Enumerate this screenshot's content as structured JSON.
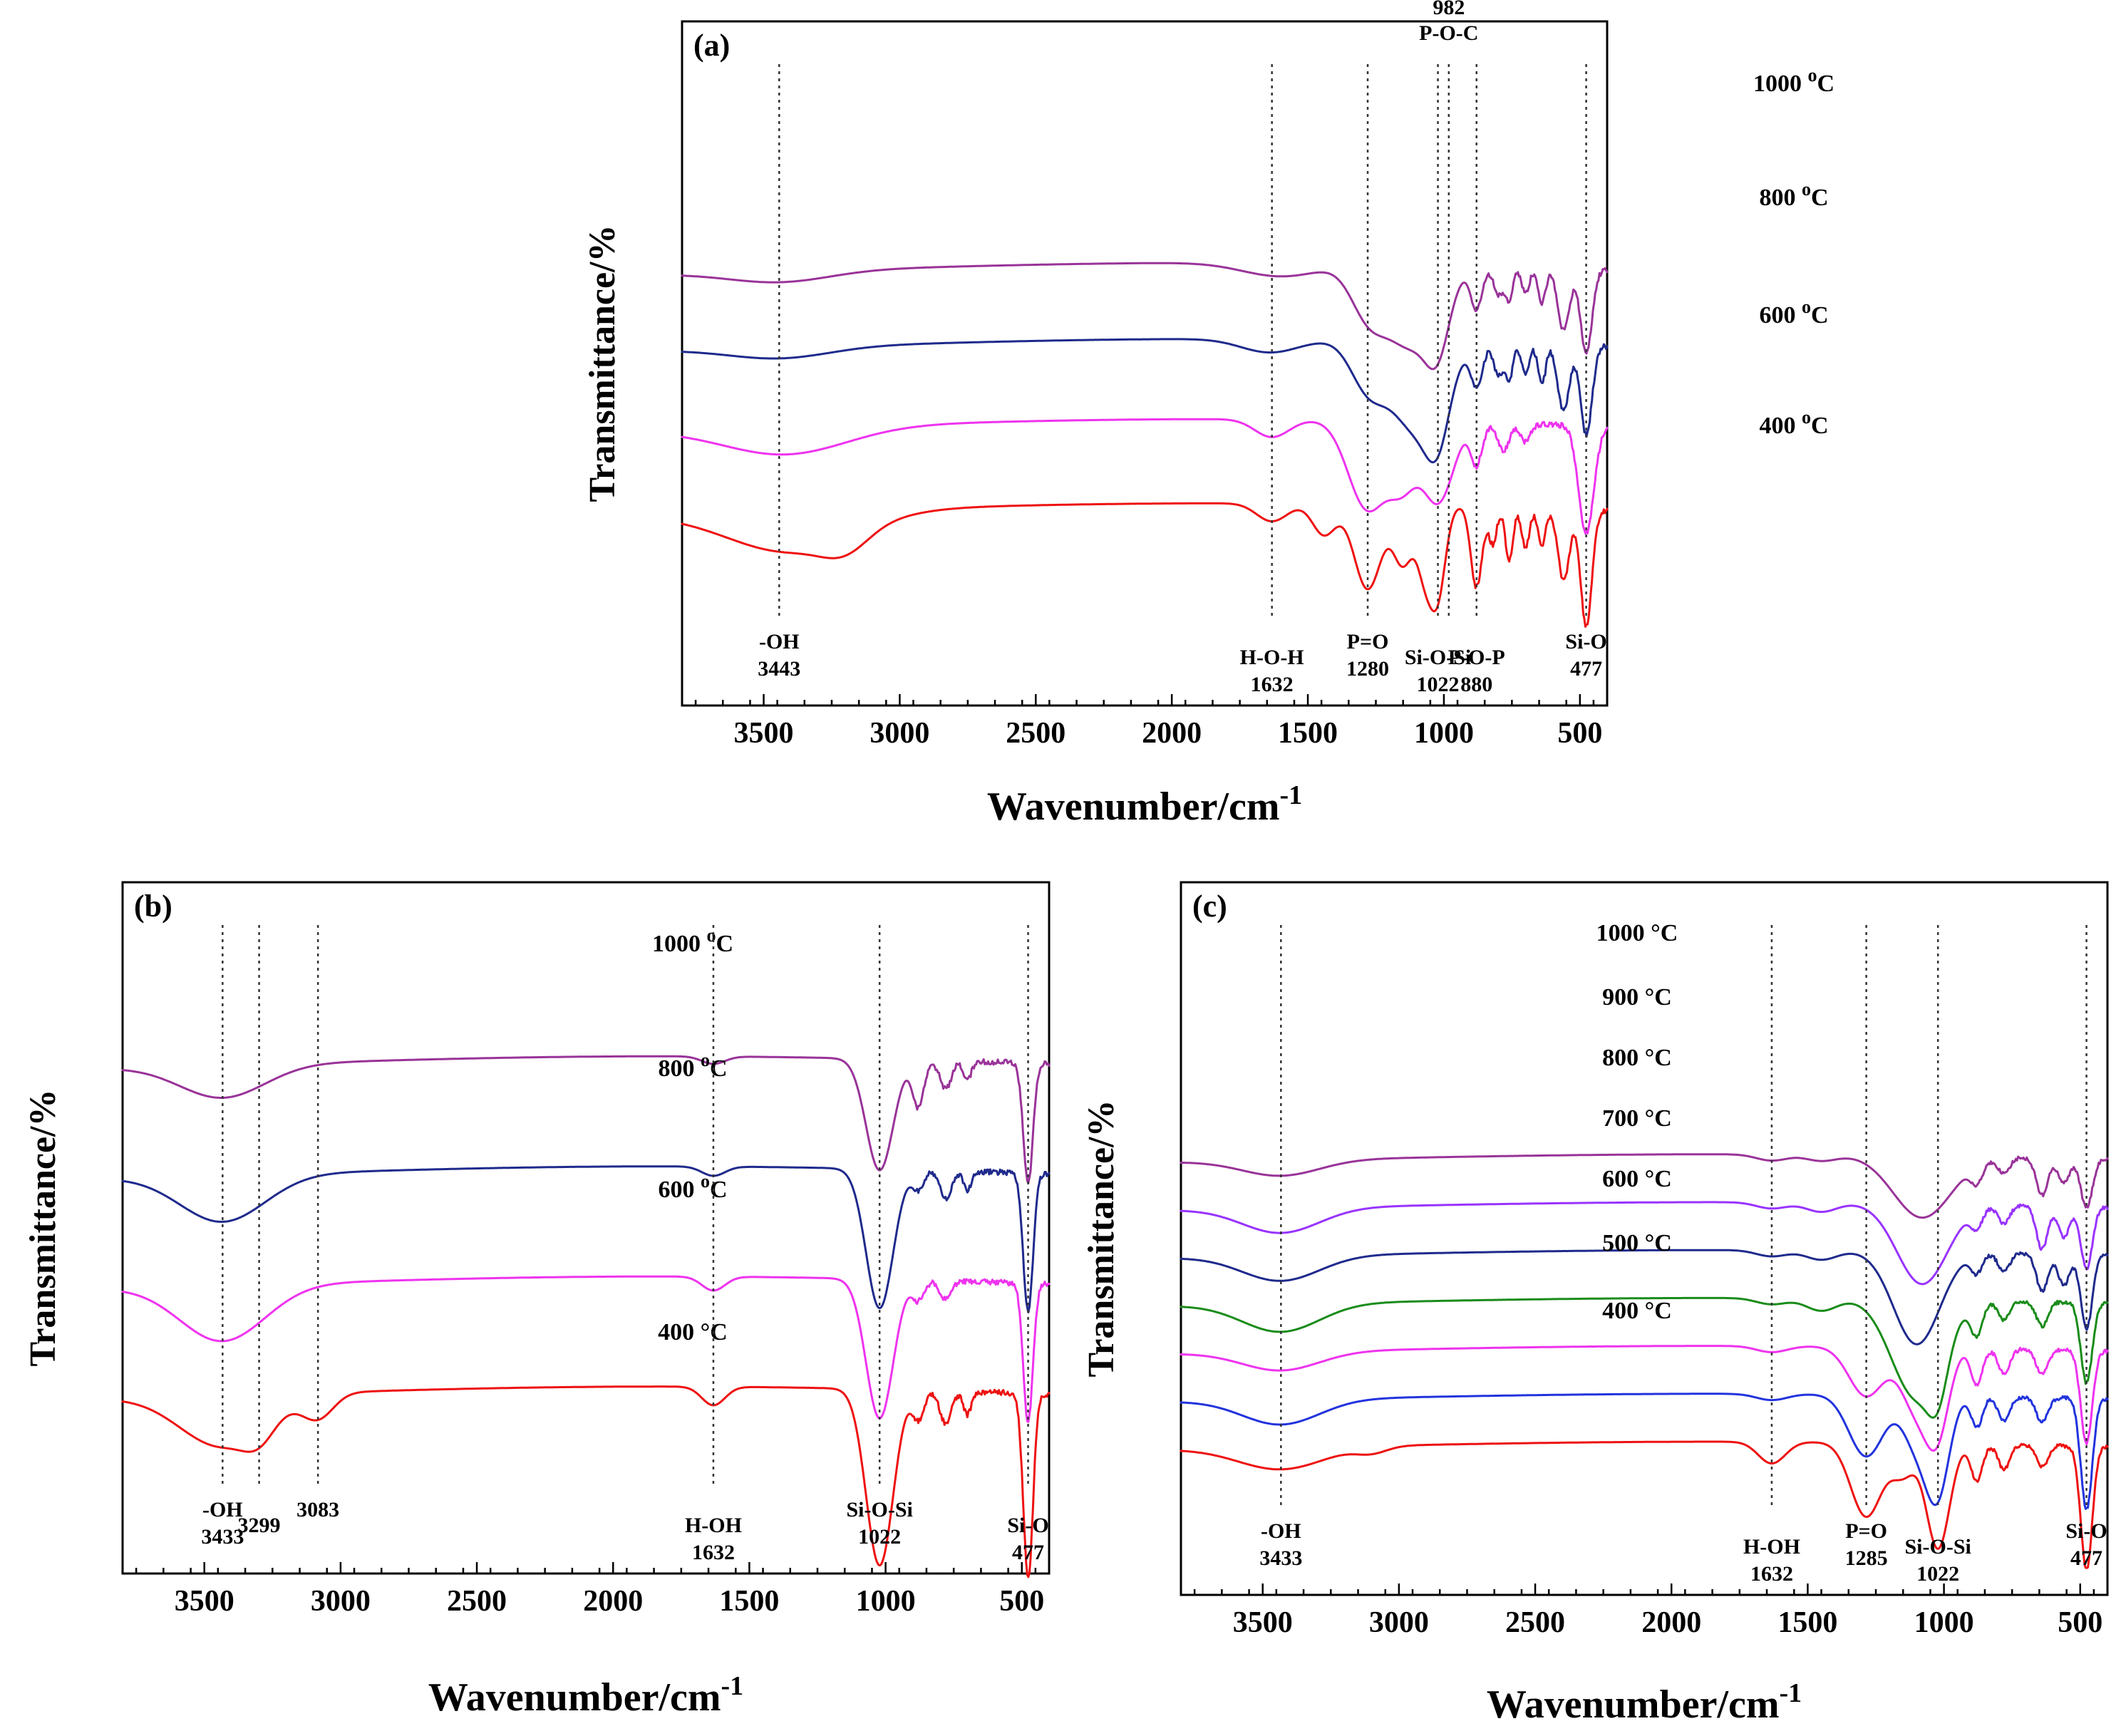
{
  "figure": {
    "ylabel": "Transmittance/%",
    "xlabel_main": "Wavenumber/cm",
    "xlabel_sup": "-1"
  },
  "chart_data": [
    {
      "id": "a",
      "type": "line",
      "panel_label": "(a)",
      "xlim": [
        3800,
        400
      ],
      "xticks": [
        3500,
        3000,
        2500,
        2000,
        1500,
        1000,
        500
      ],
      "series": [
        {
          "name": "1000 °C",
          "label_main": "1000 ",
          "label_deg": "o",
          "label_unit": "C",
          "color": "#993399",
          "offset": 3.0,
          "dips": [
            [
              3440,
              0.12,
              260
            ],
            [
              1600,
              0.15,
              200
            ],
            [
              1280,
              0.5,
              90
            ],
            [
              1120,
              0.9,
              130
            ],
            [
              1022,
              0.6,
              60
            ],
            [
              880,
              0.45,
              30
            ],
            [
              800,
              0.3,
              25
            ],
            [
              760,
              0.35,
              20
            ],
            [
              700,
              0.3,
              20
            ],
            [
              640,
              0.4,
              20
            ],
            [
              560,
              0.7,
              30
            ],
            [
              477,
              0.95,
              30
            ]
          ]
        },
        {
          "name": "800 °C",
          "label_main": "800 ",
          "label_deg": "o",
          "label_unit": "C",
          "color": "#1f2a8c",
          "offset": 2.05,
          "dips": [
            [
              3440,
              0.12,
              260
            ],
            [
              1640,
              0.15,
              150
            ],
            [
              1280,
              0.5,
              90
            ],
            [
              1100,
              1.0,
              130
            ],
            [
              1022,
              0.6,
              60
            ],
            [
              880,
              0.45,
              30
            ],
            [
              800,
              0.35,
              25
            ],
            [
              760,
              0.4,
              20
            ],
            [
              700,
              0.35,
              20
            ],
            [
              640,
              0.45,
              20
            ],
            [
              560,
              0.75,
              30
            ],
            [
              477,
              1.0,
              30
            ]
          ]
        },
        {
          "name": "600 °C",
          "label_main": "600 ",
          "label_deg": "o",
          "label_unit": "C",
          "color": "#ee33ee",
          "offset": 1.05,
          "dips": [
            [
              3420,
              0.3,
              320
            ],
            [
              1632,
              0.2,
              90
            ],
            [
              1280,
              1.0,
              100
            ],
            [
              1150,
              0.6,
              70
            ],
            [
              1022,
              0.9,
              80
            ],
            [
              880,
              0.45,
              30
            ],
            [
              780,
              0.3,
              30
            ],
            [
              700,
              0.2,
              25
            ],
            [
              477,
              1.2,
              40
            ]
          ]
        },
        {
          "name": "400 °C",
          "label_main": "400 ",
          "label_deg": "o",
          "label_unit": "C",
          "color": "#ee1111",
          "offset": 0.0,
          "dips": [
            [
              3400,
              0.45,
              330
            ],
            [
              3200,
              0.2,
              120
            ],
            [
              1632,
              0.2,
              80
            ],
            [
              1440,
              0.35,
              60
            ],
            [
              1280,
              0.95,
              70
            ],
            [
              1150,
              0.65,
              50
            ],
            [
              1070,
              0.7,
              40
            ],
            [
              1022,
              0.95,
              40
            ],
            [
              880,
              0.9,
              30
            ],
            [
              820,
              0.4,
              20
            ],
            [
              760,
              0.6,
              20
            ],
            [
              700,
              0.45,
              20
            ],
            [
              640,
              0.4,
              20
            ],
            [
              560,
              0.8,
              30
            ],
            [
              477,
              1.3,
              30
            ]
          ]
        }
      ],
      "lines": [
        {
          "x": 3443,
          "lines": [
            "-OH",
            "3443"
          ]
        },
        {
          "x": 1632,
          "lines": [
            "H-O-H",
            "1632"
          ]
        },
        {
          "x": 1280,
          "lines": [
            "P=O",
            "1280"
          ]
        },
        {
          "x": 1022,
          "lines": [
            "Si-O-Si",
            "1022"
          ]
        },
        {
          "x": 982,
          "lines": [
            "982",
            "P-O-C"
          ],
          "top": true
        },
        {
          "x": 880,
          "lines": [
            "P-O-P",
            "880"
          ]
        },
        {
          "x": 477,
          "lines": [
            "Si-O",
            "477"
          ]
        }
      ]
    },
    {
      "id": "b",
      "type": "line",
      "panel_label": "(b)",
      "xlim": [
        3800,
        400
      ],
      "xticks": [
        3500,
        3000,
        2500,
        2000,
        1500,
        1000,
        500
      ],
      "series": [
        {
          "name": "1000 °C",
          "label_main": "1000 ",
          "label_deg": "o",
          "label_unit": "C",
          "color": "#993399",
          "offset": 3.0,
          "dips": [
            [
              3433,
              0.35,
              220
            ],
            [
              1632,
              0.08,
              60
            ],
            [
              1022,
              1.2,
              70
            ],
            [
              880,
              0.5,
              30
            ],
            [
              780,
              0.3,
              30
            ],
            [
              700,
              0.2,
              20
            ],
            [
              477,
              1.3,
              25
            ]
          ]
        },
        {
          "name": "800 °C",
          "label_main": "800 ",
          "label_deg": "o",
          "label_unit": "C",
          "color": "#1f2a8c",
          "offset": 2.0,
          "dips": [
            [
              3433,
              0.5,
              220
            ],
            [
              1632,
              0.1,
              60
            ],
            [
              1022,
              1.5,
              70
            ],
            [
              880,
              0.2,
              30
            ],
            [
              780,
              0.3,
              30
            ],
            [
              700,
              0.2,
              20
            ],
            [
              477,
              1.5,
              25
            ]
          ]
        },
        {
          "name": "600 °C",
          "label_main": "600 ",
          "label_deg": "o",
          "label_unit": "C",
          "color": "#ee33ee",
          "offset": 1.0,
          "dips": [
            [
              3433,
              0.6,
              220
            ],
            [
              1632,
              0.15,
              60
            ],
            [
              1022,
              1.5,
              70
            ],
            [
              880,
              0.2,
              30
            ],
            [
              780,
              0.2,
              30
            ],
            [
              477,
              1.5,
              25
            ]
          ]
        },
        {
          "name": "400 °C",
          "label_main": "400 °C",
          "label_deg": "",
          "label_unit": "",
          "color": "#ee1111",
          "offset": 0.0,
          "dips": [
            [
              3433,
              0.55,
              220
            ],
            [
              3299,
              0.2,
              80
            ],
            [
              3083,
              0.25,
              80
            ],
            [
              1632,
              0.2,
              60
            ],
            [
              1022,
              1.9,
              70
            ],
            [
              880,
              0.3,
              30
            ],
            [
              780,
              0.35,
              30
            ],
            [
              700,
              0.25,
              20
            ],
            [
              477,
              2.0,
              25
            ]
          ]
        }
      ],
      "lines": [
        {
          "x": 3433,
          "lines": [
            "-OH",
            "3433"
          ]
        },
        {
          "x": 3299,
          "lines": [
            "3299"
          ]
        },
        {
          "x": 3083,
          "lines": [
            "3083"
          ]
        },
        {
          "x": 1632,
          "lines": [
            "H-OH",
            "1632"
          ]
        },
        {
          "x": 1022,
          "lines": [
            "Si-O-Si",
            "1022"
          ]
        },
        {
          "x": 477,
          "lines": [
            "Si-O",
            "477"
          ]
        }
      ]
    },
    {
      "id": "c",
      "type": "line",
      "panel_label": "(c)",
      "xlim": [
        3800,
        400
      ],
      "xticks": [
        3500,
        3000,
        2500,
        2000,
        1500,
        1000,
        500
      ],
      "series": [
        {
          "name": "1000 °C",
          "label_main": "1000 °C",
          "label_deg": "",
          "label_unit": "",
          "color": "#993399",
          "offset": 6.0,
          "dips": [
            [
              3433,
              0.25,
              200
            ],
            [
              1632,
              0.1,
              80
            ],
            [
              1450,
              0.1,
              80
            ],
            [
              1080,
              1.0,
              150
            ],
            [
              880,
              0.3,
              30
            ],
            [
              780,
              0.25,
              30
            ],
            [
              640,
              0.6,
              30
            ],
            [
              560,
              0.4,
              30
            ],
            [
              477,
              0.8,
              30
            ]
          ]
        },
        {
          "name": "900 °C",
          "label_main": "900 °C",
          "label_deg": "",
          "label_unit": "",
          "color": "#9933ff",
          "offset": 5.0,
          "dips": [
            [
              3433,
              0.4,
              200
            ],
            [
              1632,
              0.1,
              80
            ],
            [
              1450,
              0.15,
              80
            ],
            [
              1080,
              1.3,
              130
            ],
            [
              880,
              0.3,
              30
            ],
            [
              780,
              0.3,
              30
            ],
            [
              640,
              0.7,
              30
            ],
            [
              560,
              0.5,
              30
            ],
            [
              477,
              1.0,
              30
            ]
          ]
        },
        {
          "name": "800 °C",
          "label_main": "800 °C",
          "label_deg": "",
          "label_unit": "",
          "color": "#1f2a8c",
          "offset": 4.0,
          "dips": [
            [
              3433,
              0.4,
              200
            ],
            [
              1632,
              0.1,
              80
            ],
            [
              1450,
              0.15,
              80
            ],
            [
              1100,
              1.5,
              120
            ],
            [
              880,
              0.3,
              30
            ],
            [
              780,
              0.3,
              30
            ],
            [
              640,
              0.6,
              30
            ],
            [
              560,
              0.5,
              30
            ],
            [
              477,
              1.2,
              30
            ]
          ]
        },
        {
          "name": "700 °C",
          "label_main": "700 °C",
          "label_deg": "",
          "label_unit": "",
          "color": "#1a8c1a",
          "offset": 3.0,
          "dips": [
            [
              3433,
              0.45,
              200
            ],
            [
              1632,
              0.1,
              80
            ],
            [
              1450,
              0.2,
              80
            ],
            [
              1100,
              1.6,
              130
            ],
            [
              1022,
              0.7,
              50
            ],
            [
              880,
              0.5,
              30
            ],
            [
              780,
              0.3,
              30
            ],
            [
              640,
              0.4,
              30
            ],
            [
              477,
              1.3,
              30
            ]
          ]
        },
        {
          "name": "600 °C",
          "label_main": "600 °C",
          "label_deg": "",
          "label_unit": "",
          "color": "#ee33ee",
          "offset": 2.0,
          "dips": [
            [
              3433,
              0.3,
              200
            ],
            [
              1632,
              0.1,
              80
            ],
            [
              1285,
              0.8,
              90
            ],
            [
              1100,
              1.0,
              80
            ],
            [
              1022,
              1.2,
              60
            ],
            [
              880,
              0.6,
              30
            ],
            [
              780,
              0.4,
              30
            ],
            [
              640,
              0.4,
              30
            ],
            [
              477,
              1.5,
              30
            ]
          ]
        },
        {
          "name": "500 °C",
          "label_main": "500 °C",
          "label_deg": "",
          "label_unit": "",
          "color": "#2233dd",
          "offset": 1.0,
          "dips": [
            [
              3433,
              0.4,
              200
            ],
            [
              1632,
              0.1,
              80
            ],
            [
              1285,
              1.0,
              90
            ],
            [
              1100,
              0.8,
              70
            ],
            [
              1022,
              1.5,
              60
            ],
            [
              880,
              0.5,
              30
            ],
            [
              780,
              0.4,
              30
            ],
            [
              640,
              0.4,
              30
            ],
            [
              477,
              1.8,
              30
            ]
          ]
        },
        {
          "name": "400 °C",
          "label_main": "400 °C",
          "label_deg": "",
          "label_unit": "",
          "color": "#ee1111",
          "offset": 0.0,
          "dips": [
            [
              3433,
              0.35,
              220
            ],
            [
              3100,
              0.1,
              80
            ],
            [
              1632,
              0.35,
              70
            ],
            [
              1285,
              1.2,
              80
            ],
            [
              1150,
              0.5,
              60
            ],
            [
              1022,
              1.7,
              60
            ],
            [
              880,
              0.6,
              30
            ],
            [
              780,
              0.4,
              30
            ],
            [
              640,
              0.35,
              30
            ],
            [
              477,
              2.0,
              30
            ]
          ]
        }
      ],
      "lines": [
        {
          "x": 3433,
          "lines": [
            "-OH",
            "3433"
          ]
        },
        {
          "x": 1632,
          "lines": [
            "H-OH",
            "1632"
          ]
        },
        {
          "x": 1285,
          "lines": [
            "P=O",
            "1285"
          ]
        },
        {
          "x": 1022,
          "lines": [
            "Si-O-Si",
            "1022"
          ]
        },
        {
          "x": 477,
          "lines": [
            "Si-O",
            "477"
          ]
        }
      ]
    }
  ]
}
